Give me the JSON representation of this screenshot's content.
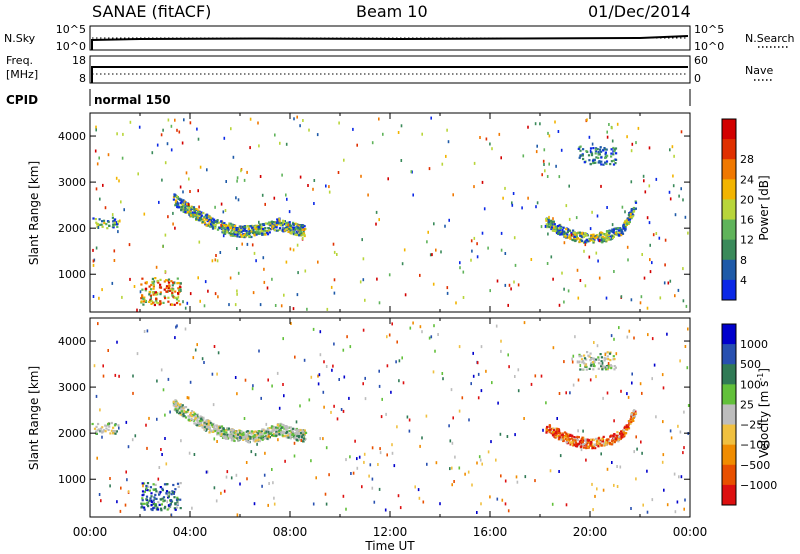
{
  "header": {
    "station": "SANAE (fitACF)",
    "beam": "Beam 10",
    "date": "01/Dec/2014"
  },
  "top_panels": {
    "nsky": {
      "label": "N.Sky",
      "ticks": [
        "10^5",
        "10^0"
      ],
      "right_label": "N.Search",
      "right_ticks": [
        "10^5",
        "10^0"
      ]
    },
    "freq": {
      "label_line1": "Freq.",
      "label_line2": "[MHz]",
      "ticks": [
        "18",
        "8"
      ],
      "right_label": "Nave",
      "right_ticks": [
        "60",
        "0"
      ]
    },
    "cpid": {
      "label": "CPID",
      "value": "normal 150"
    }
  },
  "colors": {
    "power": [
      "#0b28e6",
      "#1e5aa8",
      "#3a8a5a",
      "#5fb35a",
      "#b8d53a",
      "#f2b400",
      "#f07800",
      "#e03000",
      "#d20000"
    ],
    "velocity": [
      "#0000cc",
      "#2850b0",
      "#307a55",
      "#62c03a",
      "#bdbdbd",
      "#f0c040",
      "#f08c00",
      "#e85000",
      "#dd1010"
    ]
  },
  "chart_data": [
    {
      "type": "heatmap",
      "panel": "power",
      "xlabel": "Time UT",
      "ylabel": "Slant Range [km]",
      "xlim": [
        0,
        24
      ],
      "ylim": [
        180,
        4500
      ],
      "x_ticks": [
        "00:00",
        "04:00",
        "08:00",
        "12:00",
        "16:00",
        "20:00",
        "00:00"
      ],
      "y_ticks": [
        1000,
        2000,
        3000,
        4000
      ],
      "colorbar": {
        "label": "Power [dB]",
        "ticks": [
          "4",
          "8",
          "12",
          "16",
          "20",
          "24",
          "28"
        ]
      },
      "regions": [
        {
          "name": "morning-echo",
          "t": [
            0.0,
            1.1
          ],
          "r": [
            2000,
            2250
          ],
          "level": "medium"
        },
        {
          "name": "near-range-blob",
          "t": [
            2.0,
            3.6
          ],
          "r": [
            350,
            950
          ],
          "level": "high"
        },
        {
          "name": "arc-echo",
          "t": [
            3.3,
            8.6
          ],
          "r": [
            1900,
            2800
          ],
          "level": "medium"
        },
        {
          "name": "evening-echo",
          "t": [
            18.2,
            21.8
          ],
          "r": [
            1650,
            2400
          ],
          "level": "medium"
        },
        {
          "name": "high-range-band",
          "t": [
            19.5,
            21.0
          ],
          "r": [
            3400,
            3800
          ],
          "level": "low"
        }
      ]
    },
    {
      "type": "heatmap",
      "panel": "velocity",
      "xlabel": "Time UT",
      "ylabel": "Slant Range [km]",
      "xlim": [
        0,
        24
      ],
      "ylim": [
        180,
        4500
      ],
      "x_ticks": [
        "00:00",
        "04:00",
        "08:00",
        "12:00",
        "16:00",
        "20:00",
        "00:00"
      ],
      "y_ticks": [
        1000,
        2000,
        3000,
        4000
      ],
      "colorbar": {
        "label": "Velocity [m s^-1]",
        "ticks": [
          "1000",
          "500",
          "100",
          "25",
          "−25",
          "−100",
          "−500",
          "−1000"
        ]
      },
      "regions": [
        {
          "name": "morning-echo",
          "t": [
            0.0,
            1.1
          ],
          "r": [
            2000,
            2250
          ],
          "level": "neutral"
        },
        {
          "name": "near-range-blob",
          "t": [
            2.0,
            3.6
          ],
          "r": [
            350,
            950
          ],
          "level": "positive"
        },
        {
          "name": "arc-echo",
          "t": [
            3.3,
            8.6
          ],
          "r": [
            1900,
            2800
          ],
          "level": "neutral"
        },
        {
          "name": "evening-echo",
          "t": [
            18.2,
            21.8
          ],
          "r": [
            1650,
            2400
          ],
          "level": "negative"
        },
        {
          "name": "high-range-band",
          "t": [
            19.5,
            21.0
          ],
          "r": [
            3400,
            3800
          ],
          "level": "neutral"
        }
      ]
    }
  ]
}
